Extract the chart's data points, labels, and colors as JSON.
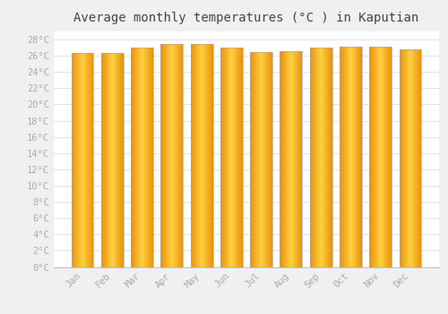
{
  "title": "Average monthly temperatures (°C ) in Kaputian",
  "months": [
    "Jan",
    "Feb",
    "Mar",
    "Apr",
    "May",
    "Jun",
    "Jul",
    "Aug",
    "Sep",
    "Oct",
    "Nov",
    "Dec"
  ],
  "values": [
    26.3,
    26.3,
    27.0,
    27.5,
    27.4,
    27.0,
    26.5,
    26.6,
    27.0,
    27.1,
    27.1,
    26.8
  ],
  "bar_color_center": "#FFD040",
  "bar_color_edge": "#E8900A",
  "background_color": "#F0F0F0",
  "plot_bg_color": "#FFFFFF",
  "grid_color": "#DDDDDD",
  "text_color": "#AAAAAA",
  "border_color": "#AAAAAA",
  "ylim": [
    0,
    29
  ],
  "ytick_step": 2,
  "title_fontsize": 10,
  "tick_fontsize": 7.5
}
